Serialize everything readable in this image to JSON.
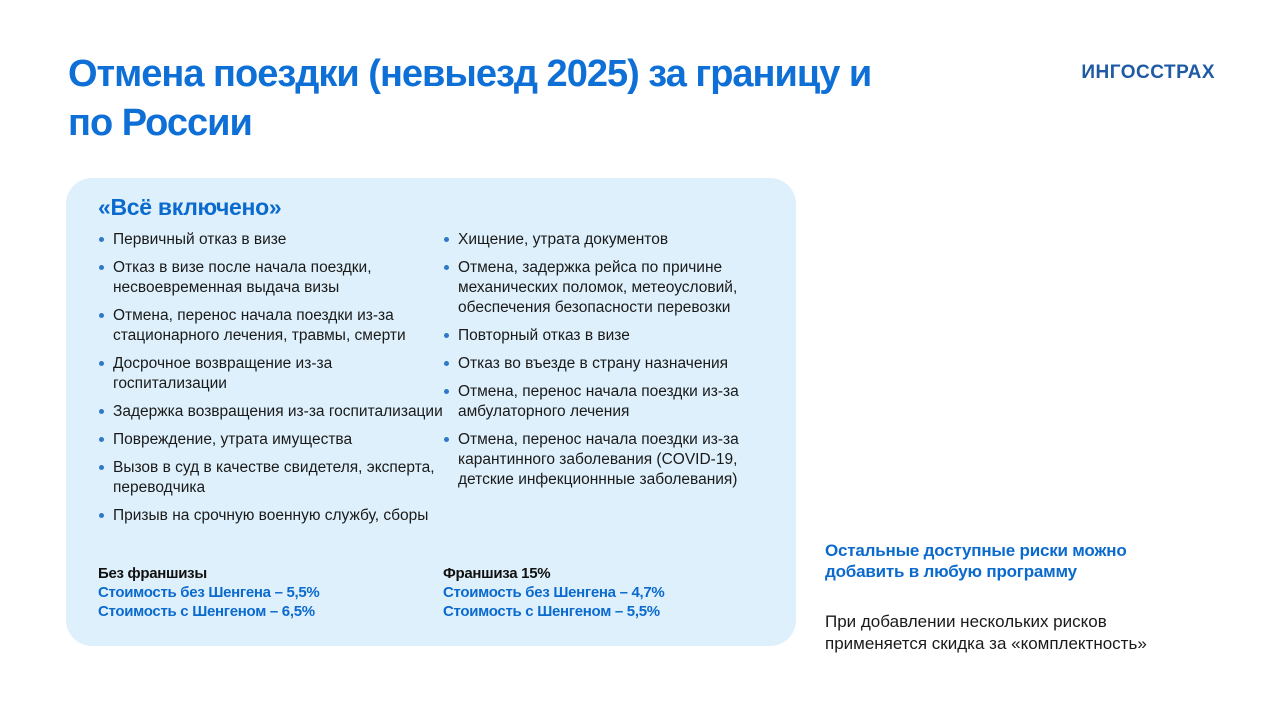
{
  "page": {
    "title": "Отмена поездки (невыезд 2025) за границу и по России",
    "logo": "ИНГОССТРАХ"
  },
  "card": {
    "heading": "«Всё включено»",
    "columns": [
      {
        "items": [
          "Первичный отказ в визе",
          "Отказ в визе после начала поездки, несвоевременная выдача визы",
          "Отмена, перенос начала поездки из-за стационарного лечения, травмы, смерти",
          "Досрочное возвращение из-за госпитализации",
          "Задержка возвращения из-за госпитализации",
          "Повреждение, утрата имущества",
          "Вызов в суд в качестве свидетеля, эксперта, переводчика",
          "Призыв на срочную военную службу, сборы"
        ]
      },
      {
        "items": [
          "Хищение, утрата документов",
          "Отмена, задержка рейса по причине механических поломок, метеоусловий, обеспечения безопасности перевозки",
          "Повторный отказ в визе",
          "Отказ во въезде в страну назначения",
          "Отмена, перенос начала поездки из-за амбулаторного лечения",
          "Отмена, перенос начала поездки из-за карантинного заболевания (COVID-19, детские инфекционнные заболевания)"
        ]
      }
    ],
    "pricing": [
      {
        "title": "Без франшизы",
        "lines": [
          "Стоимость без Шенгена – 5,5%",
          "Стоимость с Шенгеном – 6,5%"
        ]
      },
      {
        "title": "Франшиза 15%",
        "lines": [
          "Стоимость без Шенгена – 4,7%",
          "Стоимость с Шенгеном – 5,5%"
        ]
      }
    ]
  },
  "aside": {
    "heading": "Остальные доступные риски можно добавить в любую программу",
    "note": "При добавлении нескольких  рисков применяется скидка за «комплектность»"
  },
  "colors": {
    "title_blue": "#0e6fd6",
    "logo_blue": "#1f5aa5",
    "accent_blue": "#0b6ace",
    "bullet_blue": "#2f78c8",
    "card_background": "#def0fb",
    "body_text": "#1a1a1a"
  }
}
